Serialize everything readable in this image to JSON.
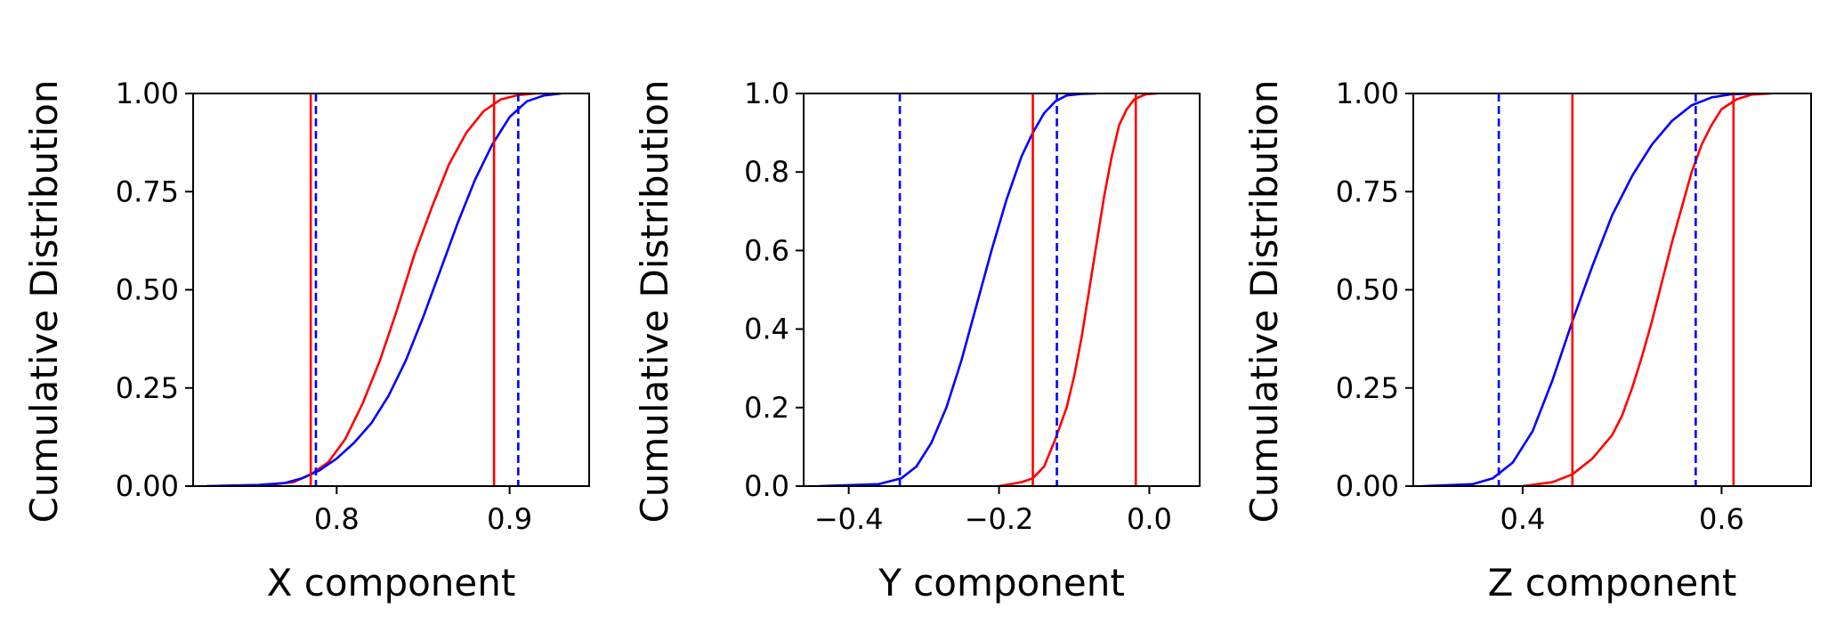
{
  "colors": {
    "red": "#ff0000",
    "blue": "#0000ff",
    "axis": "#000000"
  },
  "chart_data": [
    {
      "type": "line",
      "xlabel": "X component",
      "ylabel": "Cumulative Distribution",
      "xlim": [
        0.717,
        0.946
      ],
      "ylim": [
        0,
        1
      ],
      "grid": false,
      "xticks": [
        {
          "v": 0.8,
          "label": "0.8"
        },
        {
          "v": 0.9,
          "label": "0.9"
        }
      ],
      "yticks": [
        {
          "v": 0,
          "label": "0.00"
        },
        {
          "v": 0.25,
          "label": "0.25"
        },
        {
          "v": 0.5,
          "label": "0.50"
        },
        {
          "v": 0.75,
          "label": "0.75"
        },
        {
          "v": 1,
          "label": "1.00"
        }
      ],
      "series": [
        {
          "color": "red",
          "style": "solid",
          "x": [
            0.725,
            0.76,
            0.775,
            0.785,
            0.795,
            0.805,
            0.815,
            0.825,
            0.835,
            0.845,
            0.855,
            0.865,
            0.875,
            0.885,
            0.895,
            0.905,
            0.915,
            0.925
          ],
          "y": [
            0,
            0.003,
            0.01,
            0.03,
            0.06,
            0.12,
            0.21,
            0.32,
            0.45,
            0.59,
            0.71,
            0.82,
            0.9,
            0.955,
            0.985,
            0.996,
            1.0,
            1.0
          ]
        },
        {
          "color": "blue",
          "style": "solid",
          "x": [
            0.725,
            0.755,
            0.77,
            0.78,
            0.79,
            0.8,
            0.81,
            0.82,
            0.83,
            0.84,
            0.85,
            0.86,
            0.87,
            0.88,
            0.89,
            0.9,
            0.91,
            0.92,
            0.93
          ],
          "y": [
            0,
            0.003,
            0.008,
            0.02,
            0.04,
            0.07,
            0.11,
            0.16,
            0.23,
            0.32,
            0.43,
            0.55,
            0.67,
            0.78,
            0.87,
            0.94,
            0.98,
            0.995,
            1.0
          ]
        }
      ],
      "vlines": [
        {
          "x": 0.785,
          "color": "red",
          "style": "solid"
        },
        {
          "x": 0.891,
          "color": "red",
          "style": "solid"
        },
        {
          "x": 0.788,
          "color": "blue",
          "style": "dashed"
        },
        {
          "x": 0.905,
          "color": "blue",
          "style": "dashed"
        }
      ]
    },
    {
      "type": "line",
      "xlabel": "Y component",
      "ylabel": "Cumulative Distribution",
      "xlim": [
        -0.46,
        0.067
      ],
      "ylim": [
        0,
        1
      ],
      "grid": false,
      "xticks": [
        {
          "v": -0.4,
          "label": "−0.4"
        },
        {
          "v": -0.2,
          "label": "−0.2"
        },
        {
          "v": 0.0,
          "label": "0.0"
        }
      ],
      "yticks": [
        {
          "v": 0,
          "label": "0.0"
        },
        {
          "v": 0.2,
          "label": "0.2"
        },
        {
          "v": 0.4,
          "label": "0.4"
        },
        {
          "v": 0.6,
          "label": "0.6"
        },
        {
          "v": 0.8,
          "label": "0.8"
        },
        {
          "v": 1.0,
          "label": "1.0"
        }
      ],
      "series": [
        {
          "color": "red",
          "style": "solid",
          "x": [
            -0.2,
            -0.17,
            -0.155,
            -0.14,
            -0.125,
            -0.11,
            -0.1,
            -0.09,
            -0.08,
            -0.07,
            -0.06,
            -0.05,
            -0.04,
            -0.03,
            -0.02,
            -0.005,
            0.01
          ],
          "y": [
            0,
            0.01,
            0.02,
            0.05,
            0.12,
            0.2,
            0.28,
            0.38,
            0.5,
            0.62,
            0.74,
            0.84,
            0.92,
            0.96,
            0.985,
            0.998,
            1.0
          ]
        },
        {
          "color": "blue",
          "style": "solid",
          "x": [
            -0.44,
            -0.36,
            -0.33,
            -0.31,
            -0.29,
            -0.27,
            -0.25,
            -0.23,
            -0.21,
            -0.19,
            -0.17,
            -0.155,
            -0.14,
            -0.125,
            -0.11,
            -0.09,
            -0.07
          ],
          "y": [
            0,
            0.005,
            0.02,
            0.05,
            0.11,
            0.2,
            0.32,
            0.46,
            0.6,
            0.73,
            0.84,
            0.9,
            0.95,
            0.98,
            0.995,
            0.999,
            1.0
          ]
        }
      ],
      "vlines": [
        {
          "x": -0.155,
          "color": "red",
          "style": "solid"
        },
        {
          "x": -0.018,
          "color": "red",
          "style": "solid"
        },
        {
          "x": -0.332,
          "color": "blue",
          "style": "dashed"
        },
        {
          "x": -0.123,
          "color": "blue",
          "style": "dashed"
        }
      ]
    },
    {
      "type": "line",
      "xlabel": "Z component",
      "ylabel": "Cumulative Distribution",
      "xlim": [
        0.29,
        0.69
      ],
      "ylim": [
        0,
        1
      ],
      "grid": false,
      "xticks": [
        {
          "v": 0.4,
          "label": "0.4"
        },
        {
          "v": 0.6,
          "label": "0.6"
        }
      ],
      "yticks": [
        {
          "v": 0,
          "label": "0.00"
        },
        {
          "v": 0.25,
          "label": "0.25"
        },
        {
          "v": 0.5,
          "label": "0.50"
        },
        {
          "v": 0.75,
          "label": "0.75"
        },
        {
          "v": 1,
          "label": "1.00"
        }
      ],
      "series": [
        {
          "color": "red",
          "style": "solid",
          "x": [
            0.4,
            0.43,
            0.45,
            0.47,
            0.49,
            0.5,
            0.51,
            0.52,
            0.53,
            0.54,
            0.55,
            0.56,
            0.57,
            0.58,
            0.59,
            0.6,
            0.615,
            0.63,
            0.65
          ],
          "y": [
            0,
            0.01,
            0.03,
            0.07,
            0.13,
            0.18,
            0.25,
            0.33,
            0.42,
            0.52,
            0.62,
            0.71,
            0.8,
            0.87,
            0.92,
            0.96,
            0.985,
            0.997,
            1.0
          ]
        },
        {
          "color": "blue",
          "style": "solid",
          "x": [
            0.3,
            0.35,
            0.37,
            0.39,
            0.41,
            0.43,
            0.45,
            0.47,
            0.49,
            0.51,
            0.53,
            0.55,
            0.57,
            0.59,
            0.61,
            0.63
          ],
          "y": [
            0,
            0.005,
            0.02,
            0.06,
            0.14,
            0.27,
            0.42,
            0.56,
            0.69,
            0.79,
            0.87,
            0.93,
            0.97,
            0.99,
            0.998,
            1.0
          ]
        }
      ],
      "vlines": [
        {
          "x": 0.45,
          "color": "red",
          "style": "solid"
        },
        {
          "x": 0.612,
          "color": "red",
          "style": "solid"
        },
        {
          "x": 0.376,
          "color": "blue",
          "style": "dashed"
        },
        {
          "x": 0.574,
          "color": "blue",
          "style": "dashed"
        }
      ]
    }
  ]
}
